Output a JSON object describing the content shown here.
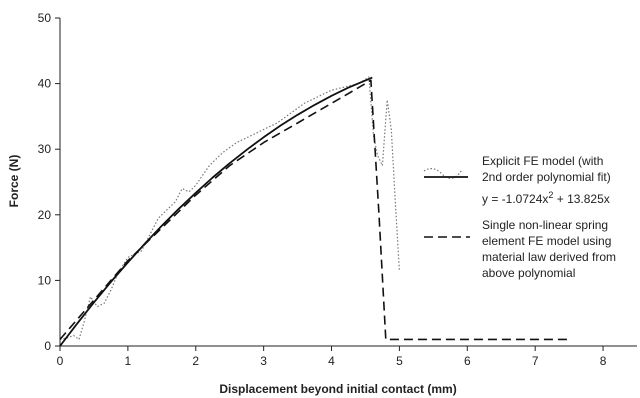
{
  "chart_data": {
    "type": "line",
    "xlabel": "Displacement beyond initial contact (mm)",
    "ylabel": "Force (N)",
    "xlim": [
      0,
      8.5
    ],
    "ylim": [
      0,
      50
    ],
    "xticks": [
      0,
      1,
      2,
      3,
      4,
      5,
      6,
      7,
      8
    ],
    "yticks": [
      0,
      10,
      20,
      30,
      40,
      50
    ],
    "grid": false,
    "legend_position": "right",
    "series": [
      {
        "name": "Explicit FE model (with 2nd order polynomial fit)",
        "style": "dotted",
        "color": "#777777",
        "x": [
          0,
          0.1,
          0.2,
          0.28,
          0.35,
          0.45,
          0.55,
          0.65,
          0.75,
          0.85,
          1.0,
          1.1,
          1.2,
          1.3,
          1.45,
          1.6,
          1.7,
          1.8,
          1.9,
          2.0,
          2.2,
          2.4,
          2.6,
          2.8,
          3.0,
          3.2,
          3.4,
          3.6,
          3.8,
          4.0,
          4.2,
          4.4,
          4.55,
          4.62,
          4.68,
          4.75,
          4.82,
          4.88,
          4.94,
          5.0
        ],
        "y": [
          1.0,
          1.2,
          1.6,
          1.0,
          3.5,
          7.5,
          6.0,
          6.5,
          8.5,
          11.0,
          13.5,
          14.0,
          14.5,
          16.5,
          19.5,
          21.0,
          22.0,
          24.0,
          23.5,
          24.5,
          27.5,
          29.5,
          31.0,
          32.0,
          33.0,
          34.0,
          35.5,
          37.0,
          38.0,
          39.0,
          39.5,
          40.0,
          41.0,
          32.0,
          29.0,
          27.5,
          37.5,
          33.0,
          22.0,
          11.5
        ]
      },
      {
        "name": "Explicit FE model (with 2nd order polynomial fit)",
        "style": "solid",
        "color": "#111111",
        "equation": "y = -1.0724x² + 13.825x",
        "coefficients": {
          "a": -1.0724,
          "b": 13.825,
          "c": 0
        },
        "x": [
          0,
          0.25,
          0.5,
          0.75,
          1.0,
          1.25,
          1.5,
          1.75,
          2.0,
          2.25,
          2.5,
          2.75,
          3.0,
          3.25,
          3.5,
          3.75,
          4.0,
          4.25,
          4.5,
          4.6
        ],
        "y": [
          0,
          3.39,
          6.64,
          9.77,
          12.75,
          15.61,
          18.33,
          20.91,
          23.36,
          25.68,
          27.86,
          29.91,
          31.82,
          33.61,
          35.25,
          36.76,
          38.14,
          39.39,
          40.49,
          40.91
        ]
      },
      {
        "name": "Single non-linear spring element FE model using material law derived from above polynomial",
        "style": "dashed",
        "color": "#111111",
        "x": [
          0,
          0.5,
          1.0,
          1.5,
          2.0,
          2.5,
          3.0,
          3.5,
          4.0,
          4.5,
          4.58,
          4.7,
          4.8,
          5.0,
          6.0,
          7.0,
          7.5
        ],
        "y": [
          1.0,
          7.0,
          13.0,
          18.0,
          23.0,
          27.5,
          31.0,
          34.0,
          37.0,
          40.0,
          40.5,
          20.0,
          1.0,
          1.0,
          1.0,
          1.0,
          1.0
        ]
      }
    ],
    "legend": {
      "entry1_lines": [
        "Explicit FE model (with",
        "2nd order polynomial fit)"
      ],
      "equation_prefix": "y = -1.0724x",
      "equation_exponent": "2",
      "equation_suffix": " + 13.825x",
      "entry2_lines": [
        "Single non-linear spring",
        "element FE model using",
        "material law derived from",
        "above polynomial"
      ]
    }
  }
}
